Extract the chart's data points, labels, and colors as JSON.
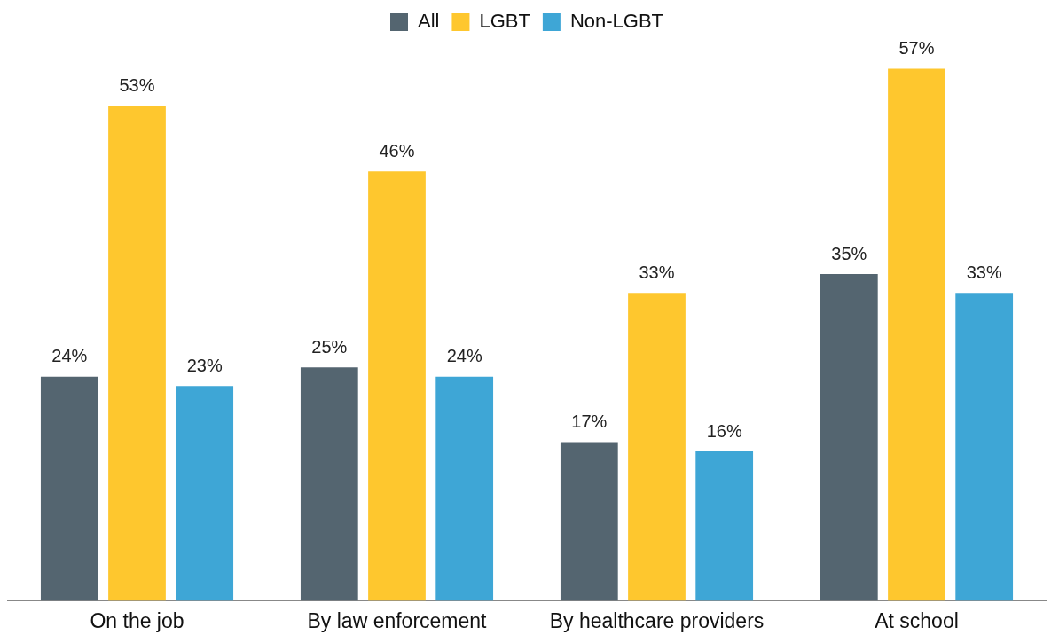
{
  "chart_data": {
    "type": "bar",
    "categories": [
      "On the job",
      "By law enforcement",
      "By healthcare providers",
      "At school"
    ],
    "series": [
      {
        "name": "All",
        "color": "#546570",
        "values": [
          24,
          25,
          17,
          35
        ],
        "value_labels": [
          "24%",
          "25%",
          "17%",
          "35%"
        ]
      },
      {
        "name": "LGBT",
        "color": "#fec72e",
        "values": [
          53,
          46,
          33,
          57
        ],
        "value_labels": [
          "53%",
          "46%",
          "33%",
          "57%"
        ]
      },
      {
        "name": "Non-LGBT",
        "color": "#3ea6d6",
        "values": [
          23,
          24,
          16,
          33
        ],
        "value_labels": [
          "23%",
          "24%",
          "16%",
          "33%"
        ]
      }
    ],
    "tick_labels": "x",
    "legend": "top"
  }
}
